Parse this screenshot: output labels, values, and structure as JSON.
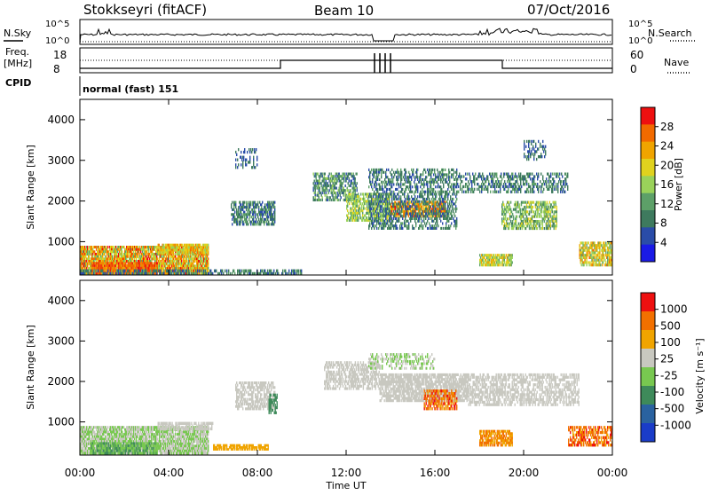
{
  "header": {
    "station": "Stokkseyri (fitACF)",
    "beam": "Beam 10",
    "date": "07/Oct/2016"
  },
  "top_panels": {
    "nsky_label": "N.Sky",
    "nsky_left_ticks": [
      "10^5",
      "10^0"
    ],
    "nsky_right_ticks": [
      "10^5",
      "10^0"
    ],
    "nsearch_label": "N.Search",
    "freq_label_line1": "Freq.",
    "freq_label_line2": "[MHz]",
    "freq_left_ticks": [
      "18",
      "8"
    ],
    "nave_right_ticks": [
      "60",
      "0"
    ],
    "nave_label": "Nave",
    "cpid_label": "CPID",
    "cpid_value": "normal (fast) 151"
  },
  "chart_data": [
    {
      "type": "heatmap",
      "name": "power",
      "ylabel": "Slant Range [km]",
      "xlabel": "",
      "y_ticks": [
        "4000",
        "3000",
        "2000",
        "1000"
      ],
      "ylim": [
        180,
        4500
      ],
      "colorbar_label": "Power [dB]",
      "colorbar_ticks": [
        "28",
        "24",
        "20",
        "16",
        "12",
        "8",
        "4"
      ],
      "colors": [
        "#1a1ae6",
        "#2a4ca8",
        "#3e7a5e",
        "#5da068",
        "#9ad25a",
        "#e0d21e",
        "#f0a400",
        "#f26a00",
        "#ee1010"
      ]
    },
    {
      "type": "heatmap",
      "name": "velocity",
      "ylabel": "Slant Range [km]",
      "xlabel": "Time UT",
      "y_ticks": [
        "4000",
        "3000",
        "2000",
        "1000"
      ],
      "x_ticks": [
        "00:00",
        "04:00",
        "08:00",
        "12:00",
        "16:00",
        "20:00",
        "00:00"
      ],
      "ylim": [
        180,
        4500
      ],
      "xlim_hours": [
        0,
        24
      ],
      "colorbar_label": "Velocity [m s⁻¹]",
      "colorbar_ticks": [
        "1000",
        "500",
        "100",
        "25",
        "-25",
        "-100",
        "-500",
        "-1000"
      ],
      "colors": [
        "#1a3cc8",
        "#2a62a0",
        "#3e8a5a",
        "#78c850",
        "#c8c8c0",
        "#f0a400",
        "#f27000",
        "#ee1010"
      ]
    }
  ]
}
